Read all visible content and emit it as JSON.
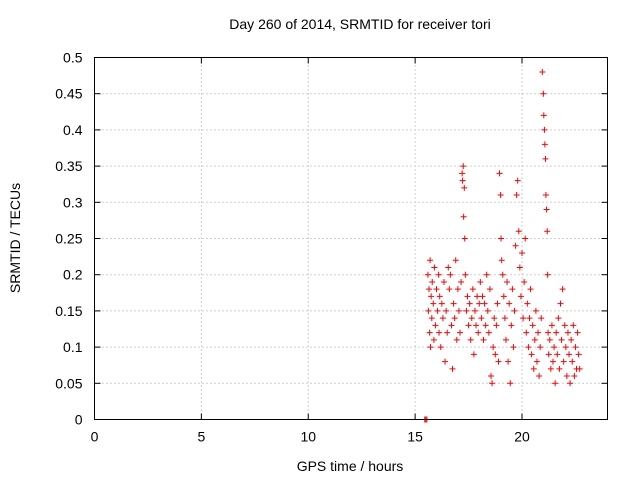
{
  "chart_data": {
    "type": "scatter",
    "title": "Day 260 of 2014, SRMTID for receiver tori",
    "xlabel": "GPS time / hours",
    "ylabel": "SRMTID / TECUs",
    "xlim": [
      0,
      24
    ],
    "ylim": [
      0,
      0.5
    ],
    "x_ticks": [
      0,
      5,
      10,
      15,
      20
    ],
    "x_tick_labels": [
      "0",
      "5",
      "10",
      "15",
      "20"
    ],
    "y_ticks": [
      0,
      0.05,
      0.1,
      0.15,
      0.2,
      0.25,
      0.3,
      0.35,
      0.4,
      0.45,
      0.5
    ],
    "y_tick_labels": [
      "0",
      "0.05",
      "0.1",
      "0.15",
      "0.2",
      "0.25",
      "0.3",
      "0.35",
      "0.4",
      "0.45",
      "0.5"
    ],
    "grid": true,
    "marker": "+",
    "color": "#ff0000",
    "series": [
      {
        "name": "SRMTID",
        "points": [
          [
            15.45,
            0.0
          ],
          [
            15.5,
            0.0
          ],
          [
            15.55,
            0.0
          ],
          [
            15.6,
            0.2
          ],
          [
            15.62,
            0.15
          ],
          [
            15.65,
            0.18
          ],
          [
            15.68,
            0.12
          ],
          [
            15.7,
            0.22
          ],
          [
            15.72,
            0.1
          ],
          [
            15.75,
            0.17
          ],
          [
            15.78,
            0.14
          ],
          [
            15.8,
            0.19
          ],
          [
            15.85,
            0.16
          ],
          [
            15.88,
            0.11
          ],
          [
            15.9,
            0.21
          ],
          [
            15.95,
            0.13
          ],
          [
            16.0,
            0.18
          ],
          [
            16.05,
            0.15
          ],
          [
            16.1,
            0.2
          ],
          [
            16.12,
            0.12
          ],
          [
            16.15,
            0.17
          ],
          [
            16.2,
            0.1
          ],
          [
            16.25,
            0.16
          ],
          [
            16.3,
            0.14
          ],
          [
            16.35,
            0.19
          ],
          [
            16.4,
            0.08
          ],
          [
            16.45,
            0.15
          ],
          [
            16.5,
            0.12
          ],
          [
            16.55,
            0.21
          ],
          [
            16.6,
            0.18
          ],
          [
            16.65,
            0.2
          ],
          [
            16.7,
            0.13
          ],
          [
            16.75,
            0.07
          ],
          [
            16.8,
            0.16
          ],
          [
            16.85,
            0.14
          ],
          [
            16.9,
            0.22
          ],
          [
            16.95,
            0.11
          ],
          [
            17.0,
            0.18
          ],
          [
            17.05,
            0.15
          ],
          [
            17.1,
            0.12
          ],
          [
            17.15,
            0.19
          ],
          [
            17.2,
            0.34
          ],
          [
            17.22,
            0.33
          ],
          [
            17.25,
            0.35
          ],
          [
            17.27,
            0.28
          ],
          [
            17.3,
            0.32
          ],
          [
            17.32,
            0.25
          ],
          [
            17.35,
            0.2
          ],
          [
            17.4,
            0.15
          ],
          [
            17.45,
            0.17
          ],
          [
            17.5,
            0.13
          ],
          [
            17.55,
            0.16
          ],
          [
            17.6,
            0.11
          ],
          [
            17.65,
            0.14
          ],
          [
            17.7,
            0.18
          ],
          [
            17.75,
            0.09
          ],
          [
            17.8,
            0.15
          ],
          [
            17.85,
            0.13
          ],
          [
            17.9,
            0.17
          ],
          [
            17.95,
            0.12
          ],
          [
            18.0,
            0.16
          ],
          [
            18.05,
            0.19
          ],
          [
            18.1,
            0.14
          ],
          [
            18.15,
            0.17
          ],
          [
            18.2,
            0.11
          ],
          [
            18.25,
            0.16
          ],
          [
            18.3,
            0.13
          ],
          [
            18.35,
            0.2
          ],
          [
            18.4,
            0.15
          ],
          [
            18.45,
            0.12
          ],
          [
            18.5,
            0.18
          ],
          [
            18.55,
            0.06
          ],
          [
            18.6,
            0.05
          ],
          [
            18.65,
            0.1
          ],
          [
            18.7,
            0.14
          ],
          [
            18.75,
            0.09
          ],
          [
            18.8,
            0.13
          ],
          [
            18.85,
            0.16
          ],
          [
            18.9,
            0.08
          ],
          [
            18.95,
            0.34
          ],
          [
            19.0,
            0.31
          ],
          [
            19.02,
            0.25
          ],
          [
            19.05,
            0.22
          ],
          [
            19.1,
            0.2
          ],
          [
            19.15,
            0.17
          ],
          [
            19.2,
            0.14
          ],
          [
            19.25,
            0.11
          ],
          [
            19.3,
            0.19
          ],
          [
            19.35,
            0.08
          ],
          [
            19.4,
            0.16
          ],
          [
            19.45,
            0.05
          ],
          [
            19.5,
            0.13
          ],
          [
            19.55,
            0.18
          ],
          [
            19.6,
            0.1
          ],
          [
            19.65,
            0.15
          ],
          [
            19.7,
            0.24
          ],
          [
            19.75,
            0.31
          ],
          [
            19.8,
            0.33
          ],
          [
            19.85,
            0.26
          ],
          [
            19.9,
            0.21
          ],
          [
            19.95,
            0.17
          ],
          [
            20.0,
            0.23
          ],
          [
            20.05,
            0.14
          ],
          [
            20.1,
            0.19
          ],
          [
            20.15,
            0.25
          ],
          [
            20.2,
            0.12
          ],
          [
            20.25,
            0.16
          ],
          [
            20.3,
            0.1
          ],
          [
            20.35,
            0.14
          ],
          [
            20.4,
            0.18
          ],
          [
            20.45,
            0.09
          ],
          [
            20.5,
            0.13
          ],
          [
            20.55,
            0.07
          ],
          [
            20.6,
            0.11
          ],
          [
            20.65,
            0.15
          ],
          [
            20.7,
            0.08
          ],
          [
            20.75,
            0.12
          ],
          [
            20.8,
            0.06
          ],
          [
            20.85,
            0.1
          ],
          [
            20.9,
            0.14
          ],
          [
            20.95,
            0.48
          ],
          [
            21.0,
            0.45
          ],
          [
            21.02,
            0.42
          ],
          [
            21.05,
            0.4
          ],
          [
            21.07,
            0.38
          ],
          [
            21.1,
            0.36
          ],
          [
            21.12,
            0.31
          ],
          [
            21.15,
            0.29
          ],
          [
            21.18,
            0.26
          ],
          [
            21.2,
            0.2
          ],
          [
            21.22,
            0.12
          ],
          [
            21.25,
            0.09
          ],
          [
            21.3,
            0.11
          ],
          [
            21.35,
            0.07
          ],
          [
            21.4,
            0.13
          ],
          [
            21.45,
            0.08
          ],
          [
            21.5,
            0.1
          ],
          [
            21.55,
            0.05
          ],
          [
            21.6,
            0.12
          ],
          [
            21.65,
            0.09
          ],
          [
            21.7,
            0.14
          ],
          [
            21.75,
            0.07
          ],
          [
            21.8,
            0.16
          ],
          [
            21.85,
            0.11
          ],
          [
            21.9,
            0.18
          ],
          [
            21.95,
            0.08
          ],
          [
            22.0,
            0.13
          ],
          [
            22.05,
            0.1
          ],
          [
            22.1,
            0.06
          ],
          [
            22.15,
            0.12
          ],
          [
            22.2,
            0.09
          ],
          [
            22.25,
            0.05
          ],
          [
            22.3,
            0.11
          ],
          [
            22.35,
            0.08
          ],
          [
            22.4,
            0.13
          ],
          [
            22.45,
            0.06
          ],
          [
            22.5,
            0.1
          ],
          [
            22.55,
            0.07
          ],
          [
            22.6,
            0.12
          ],
          [
            22.65,
            0.09
          ],
          [
            22.7,
            0.07
          ]
        ]
      }
    ]
  }
}
